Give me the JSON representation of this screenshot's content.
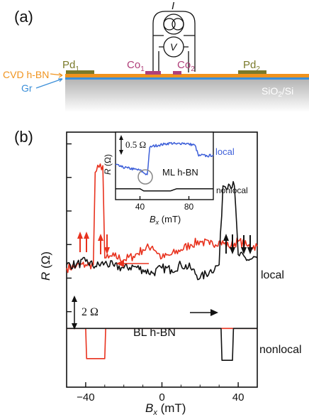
{
  "panel_a": {
    "label": "(a)",
    "meter_current": "I",
    "meter_voltage": "V",
    "electrodes": [
      {
        "name": "Pd",
        "sub": "1"
      },
      {
        "name": "Co",
        "sub": "1"
      },
      {
        "name": "Co",
        "sub": "2"
      },
      {
        "name": "Pd",
        "sub": "2"
      }
    ],
    "layer_hbn": "CVD h-BN",
    "layer_gr": "Gr",
    "substrate": {
      "text": "SiO",
      "sub": "2",
      "rest": "/Si"
    },
    "colors": {
      "hbn": "#f0931e",
      "graphene": "#3b8fd9",
      "pd": "#7a7a2a",
      "co": "#b0407a",
      "substrate_top": "#bdbdbd"
    }
  },
  "panel_b": {
    "label": "(b)",
    "ylabel": "R (Ω)",
    "xlabel": "Bx (mT)",
    "scale_bar": "2 Ω",
    "label_local": "local",
    "label_nonlocal": "nonlocal",
    "label_sample": "BL h-BN",
    "inset": {
      "scale_bar": "0.5 Ω",
      "label_local": "local",
      "label_nonlocal": "nonlocal",
      "label_sample": "ML h-BN",
      "ylabel": "R (Ω)",
      "xlabel": "Bx (mT)"
    },
    "colors": {
      "sweep_up": "#e8321e",
      "sweep_down": "#111111",
      "inset_local": "#3d5fd9"
    }
  },
  "chart_data": [
    {
      "type": "line",
      "xlabel": "Bx (mT)",
      "ylabel": "R (Ω)",
      "xlim": [
        -50,
        50
      ],
      "xticks": [
        -40,
        0,
        40
      ],
      "series": [
        {
          "name": "local",
          "color": "#e8321e",
          "x": [
            -50,
            -45,
            -40,
            -36,
            -35,
            -33,
            -31,
            -30,
            -28,
            -25,
            -20,
            -15,
            -10,
            -5,
            0,
            5,
            10,
            15,
            20,
            25,
            30,
            35,
            40,
            45,
            50
          ],
          "y": [
            2.6,
            2.7,
            2.8,
            2.8,
            8.3,
            8.6,
            8.7,
            3.2,
            3.2,
            3.3,
            3.1,
            3.3,
            3.7,
            3.9,
            3.2,
            3.4,
            3.7,
            4.0,
            4.2,
            4.0,
            4.2,
            3.9,
            4.2,
            3.9,
            3.9
          ]
        },
        {
          "name": "local",
          "color": "#111111",
          "x": [
            -50,
            -45,
            -40,
            -35,
            -30,
            -25,
            -20,
            -15,
            -10,
            -5,
            0,
            5,
            10,
            15,
            20,
            25,
            30,
            32,
            35,
            38,
            40,
            45,
            50
          ],
          "y": [
            2.8,
            2.8,
            3.0,
            2.7,
            2.9,
            2.7,
            2.6,
            2.7,
            2.5,
            2.3,
            2.6,
            2.5,
            2.8,
            2.6,
            2.0,
            2.4,
            2.8,
            7.5,
            7.6,
            7.5,
            3.4,
            3.1,
            3.2
          ]
        },
        {
          "name": "nonlocal",
          "color": "#e8321e",
          "x": [
            -50,
            -40,
            -39.5,
            -30,
            -29.5,
            -20,
            0,
            20,
            40,
            50
          ],
          "y": [
            -1.0,
            -1.0,
            -2.8,
            -2.8,
            -1.0,
            -1.0,
            -1.0,
            -1.0,
            -1.0,
            -1.0
          ]
        },
        {
          "name": "nonlocal",
          "color": "#111111",
          "x": [
            -50,
            -20,
            0,
            20,
            31,
            31.5,
            37,
            37.5,
            45,
            50
          ],
          "y": [
            -1.0,
            -1.0,
            -1.0,
            -1.0,
            -1.0,
            -2.9,
            -2.9,
            -1.0,
            -1.0,
            -1.0
          ]
        }
      ]
    },
    {
      "type": "line",
      "xlabel": "Bx (mT)",
      "ylabel": "R (Ω)",
      "xlim": [
        20,
        100
      ],
      "xticks": [
        40,
        80
      ],
      "series": [
        {
          "name": "local",
          "color": "#3d5fd9",
          "x": [
            20,
            25,
            30,
            35,
            40,
            44,
            46,
            48,
            50,
            55,
            60,
            65,
            70,
            75,
            80,
            85,
            88,
            90,
            95,
            100
          ],
          "y": [
            1.1,
            1.0,
            0.95,
            0.9,
            0.85,
            0.7,
            0.65,
            1.9,
            1.95,
            2.0,
            2.05,
            2.1,
            2.05,
            2.1,
            2.05,
            2.0,
            1.5,
            1.55,
            1.5,
            1.55
          ]
        },
        {
          "name": "nonlocal",
          "color": "#111111",
          "x": [
            20,
            40,
            43,
            52,
            65,
            70,
            75,
            100
          ],
          "y": [
            0.0,
            0.0,
            -0.1,
            -0.1,
            -0.1,
            0.0,
            0.0,
            0.0
          ]
        }
      ]
    }
  ]
}
